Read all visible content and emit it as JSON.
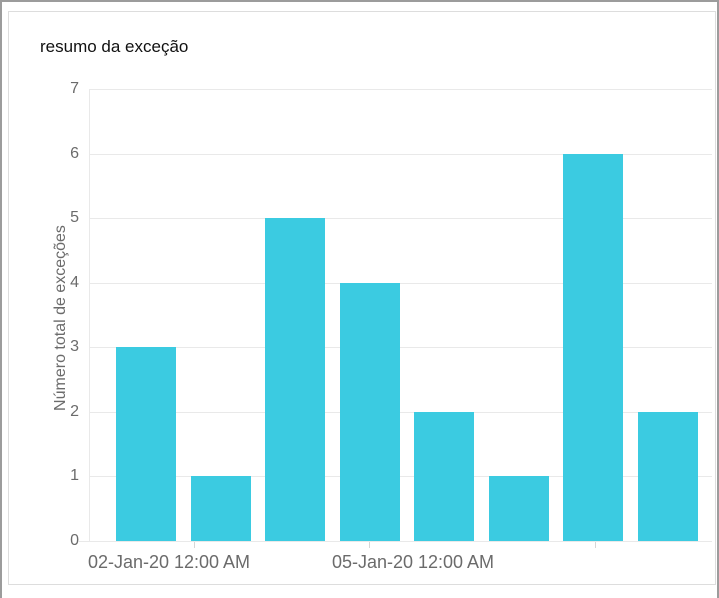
{
  "window": {
    "background_color": "#ffffff",
    "border_color": "#9c9c9c"
  },
  "widget": {
    "title": "resumo da exceção",
    "border_color": "#dddddd",
    "background_color": "#ffffff"
  },
  "chart_data": {
    "type": "bar",
    "title": "resumo da exceção",
    "xlabel": "",
    "ylabel": "Número total de exceções",
    "values": [
      3,
      1,
      5,
      4,
      2,
      1,
      6,
      2
    ],
    "ylim": [
      0,
      7
    ],
    "yticks": [
      0,
      1,
      2,
      3,
      4,
      5,
      6,
      7
    ],
    "x_axis_labels": [
      "02-Jan-20 12:00 AM",
      "05-Jan-20 12:00 AM"
    ],
    "grid": "horizontal gridlines on, light gray",
    "legend": "none",
    "bar_color": "#3bcbe1",
    "axis_text_color": "#6b6b6b",
    "grid_color": "#e9e9e9",
    "title_color": "#111111"
  }
}
